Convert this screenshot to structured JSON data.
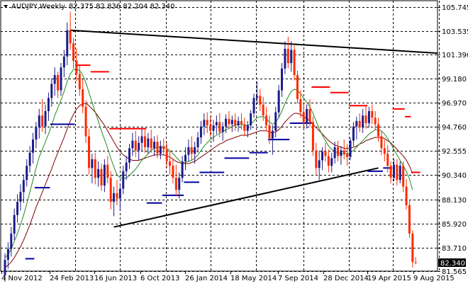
{
  "header": {
    "symbol": "AUDJPY,Weekly",
    "ohlc": "82.375 82.836 82.204 82.340"
  },
  "chart_data": {
    "type": "candlestick",
    "symbol": "AUDJPY",
    "timeframe": "Weekly",
    "ylim": [
      81.565,
      106.3
    ],
    "y_ticks": [
      "105.745",
      "103.535",
      "101.390",
      "99.180",
      "96.970",
      "94.760",
      "92.555",
      "90.340",
      "88.130",
      "85.920",
      "83.710",
      "81.565"
    ],
    "x_ticks": [
      "4 Nov 2012",
      "24 Feb 2013",
      "16 Jun 2013",
      "6 Oct 2013",
      "26 Jan 2014",
      "18 May 2014",
      "7 Sep 2014",
      "28 Dec 2014",
      "19 Apr 2015",
      "9 Aug 2015"
    ],
    "last_price": "82.340",
    "grid": true,
    "colors": {
      "bull": "#1c1c8c",
      "bear": "#ff2a00",
      "grid": "#000000",
      "trendline": "#000000",
      "ma_green": "#228b22",
      "ma_maroon": "#800000",
      "stop_long": "#0000a0",
      "stop_short": "#ff0000"
    },
    "candles": [
      {
        "o": 81.2,
        "h": 83.2,
        "l": 80.6,
        "c": 82.6
      },
      {
        "o": 82.6,
        "h": 84.2,
        "l": 81.8,
        "c": 83.6
      },
      {
        "o": 83.6,
        "h": 85.6,
        "l": 82.9,
        "c": 85.0
      },
      {
        "o": 85.0,
        "h": 87.3,
        "l": 84.4,
        "c": 86.7
      },
      {
        "o": 86.7,
        "h": 88.6,
        "l": 86.0,
        "c": 87.9
      },
      {
        "o": 87.9,
        "h": 89.5,
        "l": 87.1,
        "c": 88.8
      },
      {
        "o": 88.8,
        "h": 90.4,
        "l": 87.8,
        "c": 89.9
      },
      {
        "o": 89.9,
        "h": 91.8,
        "l": 89.3,
        "c": 91.2
      },
      {
        "o": 91.2,
        "h": 93.0,
        "l": 90.6,
        "c": 92.4
      },
      {
        "o": 92.4,
        "h": 94.2,
        "l": 91.4,
        "c": 93.6
      },
      {
        "o": 93.6,
        "h": 95.2,
        "l": 92.8,
        "c": 94.7
      },
      {
        "o": 94.7,
        "h": 96.4,
        "l": 93.7,
        "c": 95.8
      },
      {
        "o": 95.8,
        "h": 97.3,
        "l": 94.3,
        "c": 94.8
      },
      {
        "o": 94.8,
        "h": 96.8,
        "l": 94.1,
        "c": 96.2
      },
      {
        "o": 96.2,
        "h": 97.9,
        "l": 95.3,
        "c": 97.4
      },
      {
        "o": 97.4,
        "h": 99.2,
        "l": 96.6,
        "c": 98.7
      },
      {
        "o": 98.7,
        "h": 100.2,
        "l": 97.6,
        "c": 99.5
      },
      {
        "o": 99.5,
        "h": 99.8,
        "l": 97.4,
        "c": 98.1
      },
      {
        "o": 98.1,
        "h": 100.6,
        "l": 97.6,
        "c": 100.2
      },
      {
        "o": 100.2,
        "h": 101.8,
        "l": 99.3,
        "c": 101.2
      },
      {
        "o": 101.2,
        "h": 104.3,
        "l": 100.4,
        "c": 103.6
      },
      {
        "o": 103.6,
        "h": 105.3,
        "l": 101.8,
        "c": 102.4
      },
      {
        "o": 102.4,
        "h": 102.9,
        "l": 100.1,
        "c": 100.8
      },
      {
        "o": 100.8,
        "h": 101.9,
        "l": 98.9,
        "c": 99.6
      },
      {
        "o": 99.6,
        "h": 100.4,
        "l": 97.6,
        "c": 98.2
      },
      {
        "o": 98.2,
        "h": 99.1,
        "l": 96.0,
        "c": 96.6
      },
      {
        "o": 96.6,
        "h": 97.2,
        "l": 93.3,
        "c": 93.9
      },
      {
        "o": 93.9,
        "h": 94.6,
        "l": 90.4,
        "c": 91.0
      },
      {
        "o": 91.0,
        "h": 92.3,
        "l": 89.6,
        "c": 91.8
      },
      {
        "o": 91.8,
        "h": 92.4,
        "l": 89.5,
        "c": 90.1
      },
      {
        "o": 90.1,
        "h": 91.6,
        "l": 89.3,
        "c": 90.9
      },
      {
        "o": 90.9,
        "h": 91.4,
        "l": 88.9,
        "c": 89.4
      },
      {
        "o": 89.4,
        "h": 91.8,
        "l": 88.8,
        "c": 91.3
      },
      {
        "o": 91.3,
        "h": 92.1,
        "l": 89.6,
        "c": 90.1
      },
      {
        "o": 90.1,
        "h": 90.7,
        "l": 87.2,
        "c": 87.9
      },
      {
        "o": 87.9,
        "h": 89.3,
        "l": 86.6,
        "c": 88.7
      },
      {
        "o": 88.7,
        "h": 89.9,
        "l": 87.6,
        "c": 88.2
      },
      {
        "o": 88.2,
        "h": 89.6,
        "l": 87.1,
        "c": 89.1
      },
      {
        "o": 89.1,
        "h": 91.2,
        "l": 88.6,
        "c": 90.7
      },
      {
        "o": 90.7,
        "h": 92.1,
        "l": 89.9,
        "c": 91.5
      },
      {
        "o": 91.5,
        "h": 93.2,
        "l": 90.9,
        "c": 92.8
      },
      {
        "o": 92.8,
        "h": 94.2,
        "l": 92.1,
        "c": 93.5
      },
      {
        "o": 93.5,
        "h": 94.4,
        "l": 92.0,
        "c": 92.6
      },
      {
        "o": 92.6,
        "h": 93.9,
        "l": 91.7,
        "c": 93.3
      },
      {
        "o": 93.3,
        "h": 94.6,
        "l": 92.5,
        "c": 93.9
      },
      {
        "o": 93.9,
        "h": 94.7,
        "l": 92.4,
        "c": 92.9
      },
      {
        "o": 92.9,
        "h": 94.2,
        "l": 92.3,
        "c": 93.7
      },
      {
        "o": 93.7,
        "h": 94.5,
        "l": 92.4,
        "c": 92.8
      },
      {
        "o": 92.8,
        "h": 93.9,
        "l": 92.1,
        "c": 93.4
      },
      {
        "o": 93.4,
        "h": 94.0,
        "l": 91.9,
        "c": 92.3
      },
      {
        "o": 92.3,
        "h": 93.5,
        "l": 91.8,
        "c": 93.0
      },
      {
        "o": 93.0,
        "h": 93.7,
        "l": 92.2,
        "c": 92.7
      },
      {
        "o": 92.7,
        "h": 93.3,
        "l": 91.0,
        "c": 91.6
      },
      {
        "o": 91.6,
        "h": 92.6,
        "l": 90.4,
        "c": 91.2
      },
      {
        "o": 91.2,
        "h": 91.9,
        "l": 89.6,
        "c": 90.1
      },
      {
        "o": 90.1,
        "h": 91.3,
        "l": 88.4,
        "c": 89.0
      },
      {
        "o": 89.0,
        "h": 90.6,
        "l": 88.2,
        "c": 90.1
      },
      {
        "o": 90.1,
        "h": 92.1,
        "l": 89.7,
        "c": 91.6
      },
      {
        "o": 91.6,
        "h": 92.9,
        "l": 90.8,
        "c": 92.2
      },
      {
        "o": 92.2,
        "h": 93.6,
        "l": 91.6,
        "c": 92.9
      },
      {
        "o": 92.9,
        "h": 93.9,
        "l": 91.7,
        "c": 92.3
      },
      {
        "o": 92.3,
        "h": 93.4,
        "l": 91.4,
        "c": 92.9
      },
      {
        "o": 92.9,
        "h": 94.3,
        "l": 92.4,
        "c": 93.8
      },
      {
        "o": 93.8,
        "h": 95.3,
        "l": 93.2,
        "c": 94.8
      },
      {
        "o": 94.8,
        "h": 96.0,
        "l": 94.0,
        "c": 95.4
      },
      {
        "o": 95.4,
        "h": 96.1,
        "l": 94.2,
        "c": 94.9
      },
      {
        "o": 94.9,
        "h": 95.7,
        "l": 93.9,
        "c": 94.4
      },
      {
        "o": 94.4,
        "h": 95.4,
        "l": 93.4,
        "c": 94.9
      },
      {
        "o": 94.9,
        "h": 95.8,
        "l": 94.1,
        "c": 95.2
      },
      {
        "o": 95.2,
        "h": 96.0,
        "l": 93.8,
        "c": 94.3
      },
      {
        "o": 94.3,
        "h": 95.2,
        "l": 93.5,
        "c": 94.8
      },
      {
        "o": 94.8,
        "h": 95.9,
        "l": 94.2,
        "c": 95.5
      },
      {
        "o": 95.5,
        "h": 96.2,
        "l": 94.6,
        "c": 95.0
      },
      {
        "o": 95.0,
        "h": 95.8,
        "l": 94.3,
        "c": 95.4
      },
      {
        "o": 95.4,
        "h": 96.0,
        "l": 94.4,
        "c": 94.9
      },
      {
        "o": 94.9,
        "h": 95.7,
        "l": 94.3,
        "c": 95.3
      },
      {
        "o": 95.3,
        "h": 96.0,
        "l": 94.5,
        "c": 95.0
      },
      {
        "o": 95.0,
        "h": 95.6,
        "l": 93.9,
        "c": 94.4
      },
      {
        "o": 94.4,
        "h": 95.3,
        "l": 93.8,
        "c": 94.9
      },
      {
        "o": 94.9,
        "h": 96.3,
        "l": 94.5,
        "c": 96.0
      },
      {
        "o": 96.0,
        "h": 97.8,
        "l": 95.6,
        "c": 97.4
      },
      {
        "o": 97.4,
        "h": 98.9,
        "l": 96.8,
        "c": 97.6
      },
      {
        "o": 97.6,
        "h": 98.2,
        "l": 96.2,
        "c": 96.8
      },
      {
        "o": 96.8,
        "h": 97.5,
        "l": 95.3,
        "c": 95.8
      },
      {
        "o": 95.8,
        "h": 96.6,
        "l": 94.4,
        "c": 94.9
      },
      {
        "o": 94.9,
        "h": 95.8,
        "l": 93.2,
        "c": 93.7
      },
      {
        "o": 93.7,
        "h": 94.9,
        "l": 92.2,
        "c": 94.4
      },
      {
        "o": 94.4,
        "h": 96.6,
        "l": 93.8,
        "c": 96.1
      },
      {
        "o": 96.1,
        "h": 98.6,
        "l": 95.6,
        "c": 98.1
      },
      {
        "o": 98.1,
        "h": 100.6,
        "l": 97.5,
        "c": 100.1
      },
      {
        "o": 100.1,
        "h": 102.6,
        "l": 99.6,
        "c": 101.9
      },
      {
        "o": 101.9,
        "h": 103.0,
        "l": 100.1,
        "c": 100.6
      },
      {
        "o": 100.6,
        "h": 102.6,
        "l": 99.8,
        "c": 101.8
      },
      {
        "o": 101.8,
        "h": 102.2,
        "l": 99.0,
        "c": 99.5
      },
      {
        "o": 99.5,
        "h": 99.9,
        "l": 96.9,
        "c": 97.3
      },
      {
        "o": 97.3,
        "h": 98.1,
        "l": 95.6,
        "c": 96.1
      },
      {
        "o": 96.1,
        "h": 97.0,
        "l": 94.6,
        "c": 95.1
      },
      {
        "o": 95.1,
        "h": 96.8,
        "l": 94.6,
        "c": 96.4
      },
      {
        "o": 96.4,
        "h": 97.3,
        "l": 94.8,
        "c": 95.2
      },
      {
        "o": 95.2,
        "h": 95.7,
        "l": 92.1,
        "c": 92.6
      },
      {
        "o": 92.6,
        "h": 93.3,
        "l": 90.4,
        "c": 91.0
      },
      {
        "o": 91.0,
        "h": 92.6,
        "l": 89.9,
        "c": 91.7
      },
      {
        "o": 91.7,
        "h": 92.9,
        "l": 90.8,
        "c": 92.5
      },
      {
        "o": 92.5,
        "h": 93.3,
        "l": 91.6,
        "c": 92.1
      },
      {
        "o": 92.1,
        "h": 92.7,
        "l": 90.6,
        "c": 91.2
      },
      {
        "o": 91.2,
        "h": 92.4,
        "l": 90.6,
        "c": 91.9
      },
      {
        "o": 91.9,
        "h": 93.4,
        "l": 91.4,
        "c": 92.9
      },
      {
        "o": 92.9,
        "h": 93.5,
        "l": 91.6,
        "c": 92.1
      },
      {
        "o": 92.1,
        "h": 93.0,
        "l": 91.3,
        "c": 92.6
      },
      {
        "o": 92.6,
        "h": 93.6,
        "l": 91.8,
        "c": 92.3
      },
      {
        "o": 92.3,
        "h": 93.2,
        "l": 91.2,
        "c": 92.0
      },
      {
        "o": 92.0,
        "h": 93.8,
        "l": 91.7,
        "c": 93.5
      },
      {
        "o": 93.5,
        "h": 95.2,
        "l": 93.0,
        "c": 94.8
      },
      {
        "o": 94.8,
        "h": 95.7,
        "l": 93.6,
        "c": 95.3
      },
      {
        "o": 95.3,
        "h": 96.0,
        "l": 94.3,
        "c": 94.7
      },
      {
        "o": 94.7,
        "h": 96.4,
        "l": 94.2,
        "c": 95.8
      },
      {
        "o": 95.8,
        "h": 96.7,
        "l": 94.6,
        "c": 95.1
      },
      {
        "o": 95.1,
        "h": 96.6,
        "l": 94.7,
        "c": 96.2
      },
      {
        "o": 96.2,
        "h": 96.8,
        "l": 95.0,
        "c": 95.6
      },
      {
        "o": 95.6,
        "h": 96.2,
        "l": 94.5,
        "c": 95.0
      },
      {
        "o": 95.0,
        "h": 95.6,
        "l": 93.4,
        "c": 93.9
      },
      {
        "o": 93.9,
        "h": 94.4,
        "l": 92.2,
        "c": 92.8
      },
      {
        "o": 92.8,
        "h": 93.6,
        "l": 91.6,
        "c": 92.3
      },
      {
        "o": 92.3,
        "h": 93.1,
        "l": 90.6,
        "c": 91.2
      },
      {
        "o": 91.2,
        "h": 91.6,
        "l": 89.6,
        "c": 90.1
      },
      {
        "o": 90.1,
        "h": 91.8,
        "l": 89.8,
        "c": 91.3
      },
      {
        "o": 91.3,
        "h": 91.8,
        "l": 89.4,
        "c": 89.9
      },
      {
        "o": 89.9,
        "h": 91.6,
        "l": 89.6,
        "c": 91.2
      },
      {
        "o": 91.2,
        "h": 91.6,
        "l": 88.8,
        "c": 89.3
      },
      {
        "o": 89.3,
        "h": 90.0,
        "l": 87.2,
        "c": 87.6
      },
      {
        "o": 87.6,
        "h": 88.1,
        "l": 84.6,
        "c": 85.0
      },
      {
        "o": 85.0,
        "h": 85.3,
        "l": 81.9,
        "c": 82.4
      },
      {
        "o": 82.375,
        "h": 82.836,
        "l": 82.204,
        "c": 82.34
      }
    ],
    "ma_green": [
      82.8,
      83.1,
      83.6,
      84.3,
      85.0,
      85.8,
      86.7,
      87.7,
      88.8,
      89.9,
      91.0,
      92.0,
      92.7,
      93.4,
      94.1,
      94.9,
      95.8,
      96.5,
      97.2,
      98.0,
      98.9,
      99.6,
      100.0,
      100.1,
      99.9,
      99.5,
      98.8,
      97.9,
      97.0,
      96.1,
      95.3,
      94.4,
      93.6,
      92.8,
      91.9,
      91.1,
      90.4,
      90.1,
      90.0,
      90.1,
      90.3,
      90.6,
      90.9,
      91.3,
      91.7,
      92.0,
      92.3,
      92.6,
      92.8,
      92.9,
      92.9,
      92.9,
      92.8,
      92.6,
      92.3,
      92.0,
      91.7,
      91.5,
      91.5,
      91.6,
      91.7,
      91.9,
      92.2,
      92.6,
      93.0,
      93.3,
      93.6,
      93.8,
      94.0,
      94.2,
      94.3,
      94.5,
      94.6,
      94.8,
      94.9,
      95.0,
      95.0,
      94.9,
      94.9,
      95.0,
      95.3,
      95.6,
      95.7,
      95.7,
      95.5,
      95.2,
      95.0,
      95.2,
      95.6,
      96.2,
      96.9,
      97.5,
      98.0,
      98.2,
      98.1,
      97.8,
      97.4,
      97.0,
      96.6,
      96.0,
      95.3,
      94.6,
      94.0,
      93.5,
      93.0,
      92.7,
      92.5,
      92.4,
      92.3,
      92.3,
      92.3,
      92.4,
      92.6,
      92.9,
      93.2,
      93.5,
      93.8,
      94.1,
      94.3,
      94.5,
      94.5,
      94.4,
      94.1,
      93.7,
      93.2,
      92.7,
      92.2,
      91.7,
      91.2,
      90.7,
      90.0,
      89.0
    ],
    "ma_maroon": [
      81.9,
      82.1,
      82.4,
      82.8,
      83.3,
      83.8,
      84.4,
      85.1,
      85.8,
      86.6,
      87.4,
      88.1,
      88.8,
      89.5,
      90.2,
      90.9,
      91.7,
      92.4,
      93.1,
      93.8,
      94.6,
      95.3,
      95.9,
      96.4,
      96.7,
      96.9,
      96.9,
      96.7,
      96.4,
      96.1,
      95.7,
      95.3,
      94.9,
      94.4,
      93.9,
      93.4,
      92.9,
      92.5,
      92.2,
      92.0,
      91.8,
      91.7,
      91.7,
      91.7,
      91.8,
      91.9,
      92.0,
      92.1,
      92.2,
      92.2,
      92.2,
      92.2,
      92.1,
      92.0,
      91.8,
      91.6,
      91.5,
      91.4,
      91.4,
      91.4,
      91.5,
      91.6,
      91.8,
      92.0,
      92.2,
      92.4,
      92.6,
      92.8,
      93.0,
      93.2,
      93.3,
      93.5,
      93.6,
      93.7,
      93.8,
      93.9,
      94.0,
      94.0,
      94.0,
      94.1,
      94.2,
      94.3,
      94.4,
      94.4,
      94.4,
      94.3,
      94.2,
      94.3,
      94.5,
      94.8,
      95.2,
      95.5,
      95.8,
      96.0,
      96.0,
      95.9,
      95.7,
      95.5,
      95.3,
      95.0,
      94.7,
      94.4,
      94.1,
      93.8,
      93.5,
      93.3,
      93.1,
      93.0,
      92.9,
      92.8,
      92.8,
      92.8,
      92.9,
      93.0,
      93.2,
      93.3,
      93.5,
      93.6,
      93.7,
      93.8,
      93.8,
      93.8,
      93.7,
      93.5,
      93.3,
      93.0,
      92.7,
      92.4,
      92.1,
      91.7,
      91.2,
      90.5
    ],
    "stops": [
      {
        "side": "long",
        "from": 7,
        "to": 9,
        "level": 82.7
      },
      {
        "side": "long",
        "from": 10,
        "to": 14,
        "level": 89.2
      },
      {
        "side": "long",
        "from": 15,
        "to": 22,
        "level": 95.0
      },
      {
        "side": "short",
        "from": 23,
        "to": 27,
        "level": 100.4
      },
      {
        "side": "short",
        "from": 28,
        "to": 33,
        "level": 99.8
      },
      {
        "side": "short",
        "from": 34,
        "to": 45,
        "level": 94.6
      },
      {
        "side": "long",
        "from": 46,
        "to": 50,
        "level": 87.8
      },
      {
        "side": "long",
        "from": 51,
        "to": 57,
        "level": 88.5
      },
      {
        "side": "long",
        "from": 58,
        "to": 62,
        "level": 89.7
      },
      {
        "side": "long",
        "from": 63,
        "to": 70,
        "level": 90.6
      },
      {
        "side": "long",
        "from": 71,
        "to": 78,
        "level": 91.9
      },
      {
        "side": "long",
        "from": 79,
        "to": 84,
        "level": 92.4
      },
      {
        "side": "long",
        "from": 85,
        "to": 91,
        "level": 93.6
      },
      {
        "side": "long",
        "from": 92,
        "to": 98,
        "level": 95.1
      },
      {
        "side": "short",
        "from": 99,
        "to": 104,
        "level": 98.4
      },
      {
        "side": "short",
        "from": 105,
        "to": 110,
        "level": 97.9
      },
      {
        "side": "short",
        "from": 111,
        "to": 116,
        "level": 96.7
      },
      {
        "side": "long",
        "from": 117,
        "to": 121,
        "level": 90.7
      },
      {
        "side": "long",
        "from": 122,
        "to": 124,
        "level": 91.0
      },
      {
        "side": "short",
        "from": 125,
        "to": 128,
        "level": 96.4
      },
      {
        "side": "short",
        "from": 129,
        "to": 130,
        "level": 95.7
      },
      {
        "side": "short",
        "from": 131,
        "to": 133,
        "level": 90.6
      }
    ],
    "trendlines": [
      {
        "from": 21,
        "from_price": 103.6,
        "to": "end",
        "to_price": 101.5
      },
      {
        "from": 35,
        "from_price": 85.6,
        "to": 120,
        "to_price": 91.0
      }
    ]
  }
}
